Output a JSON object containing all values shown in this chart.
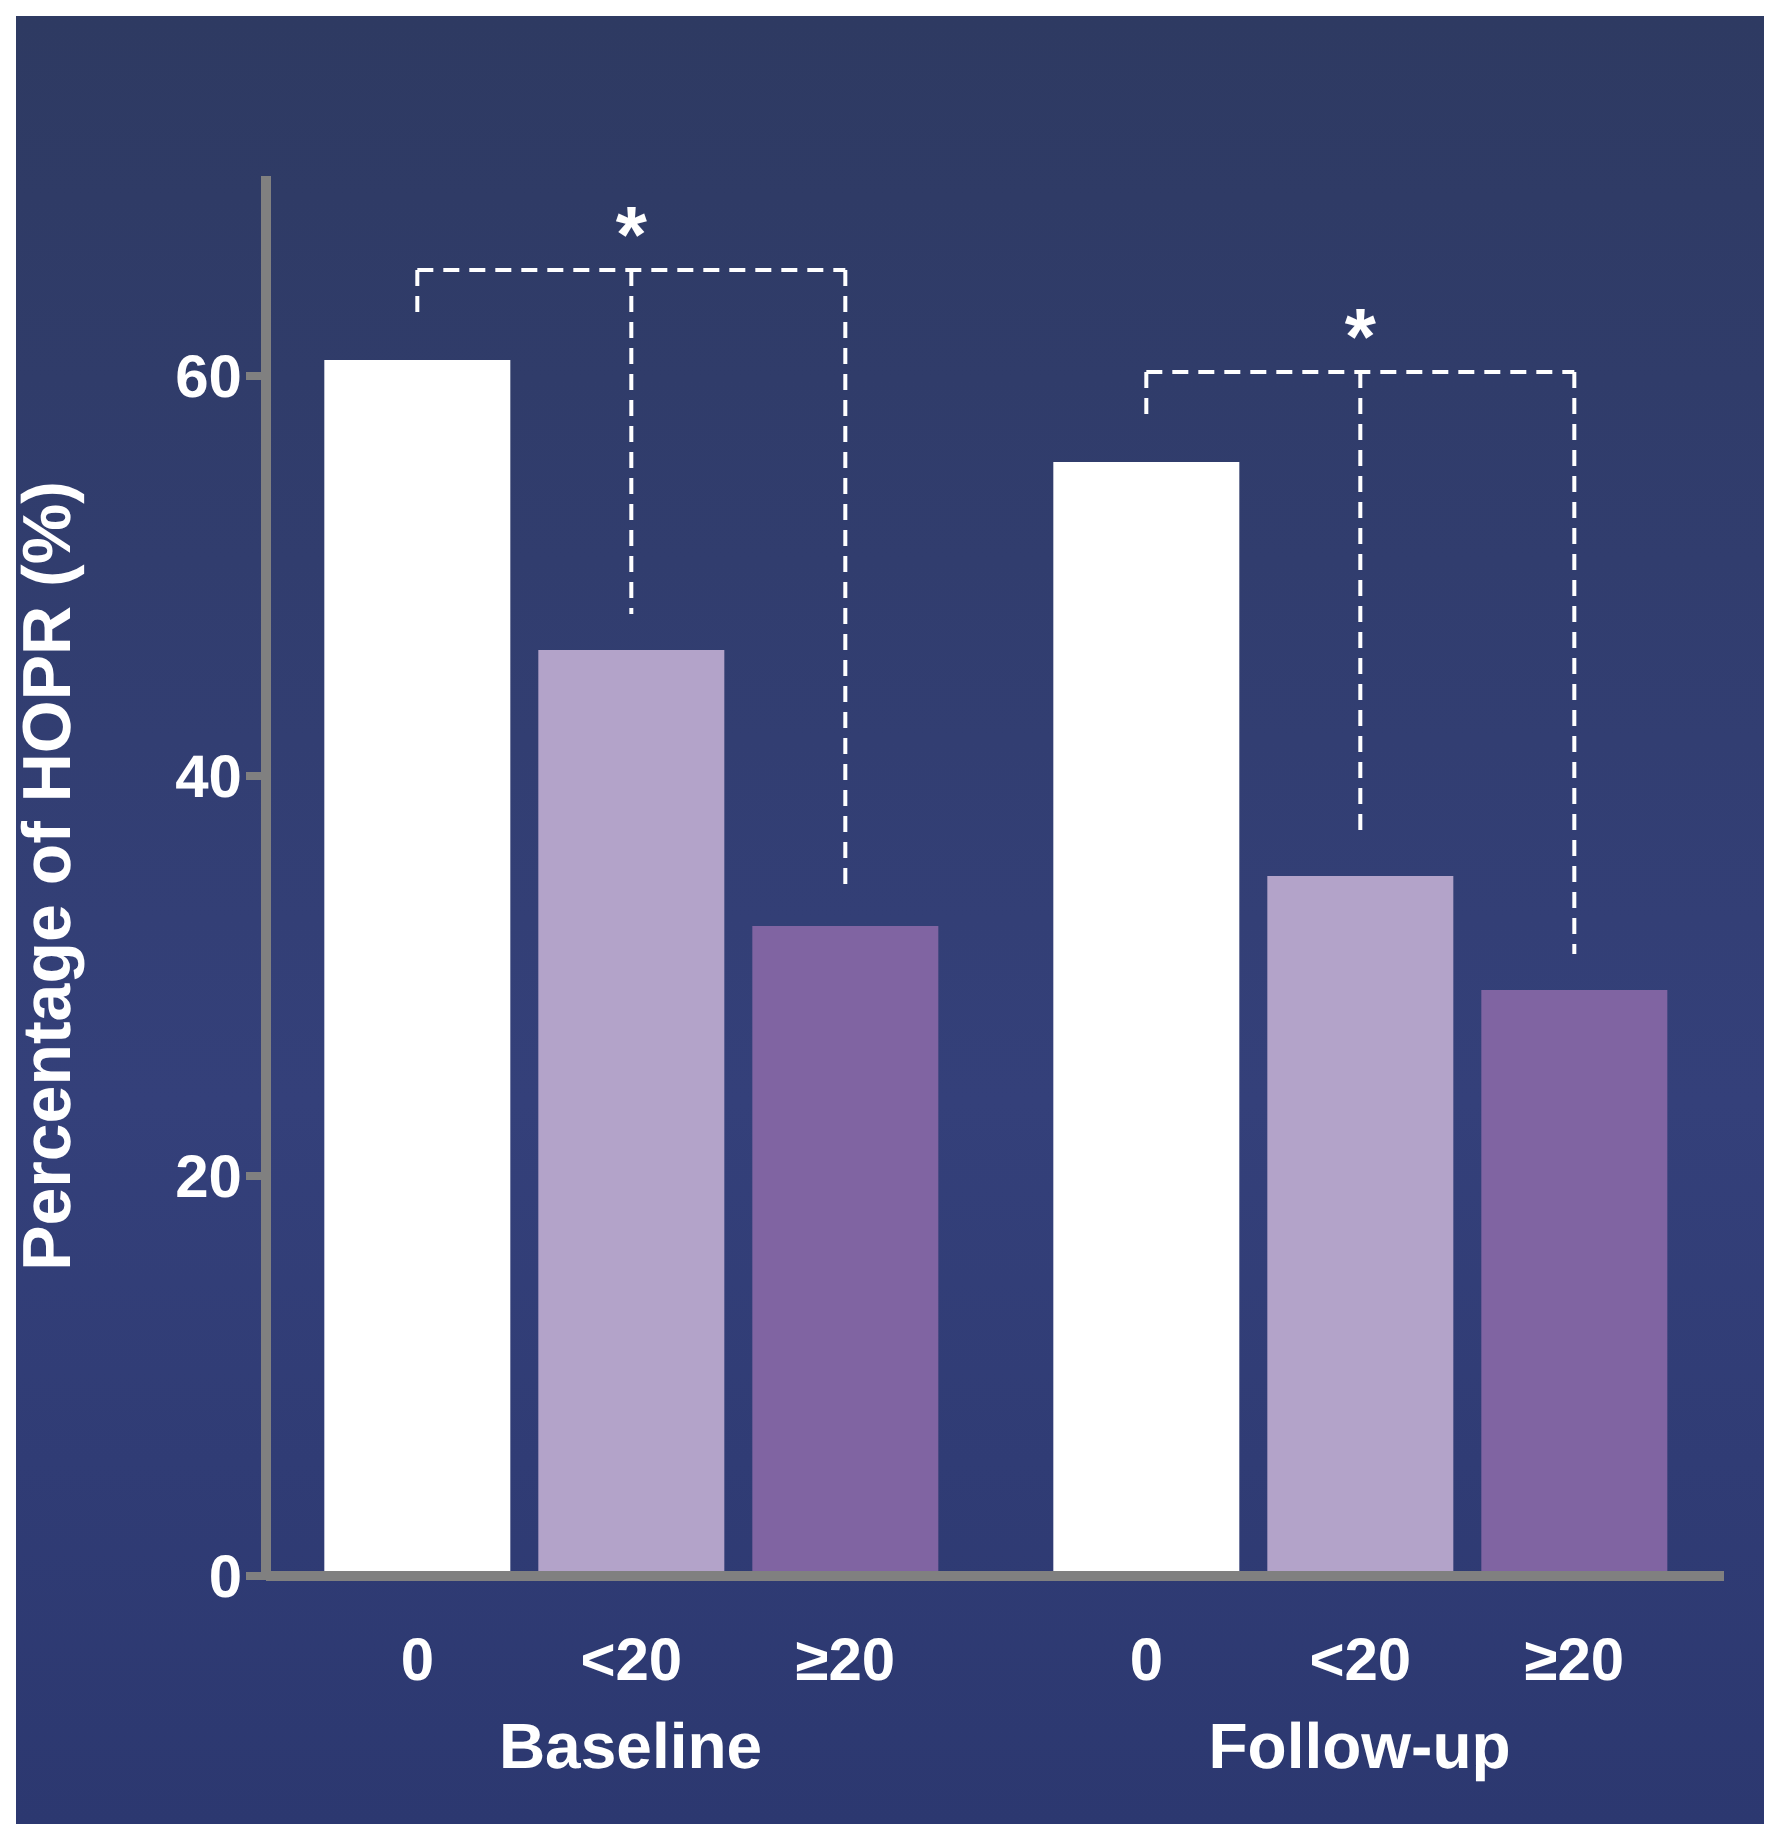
{
  "chart_data": {
    "type": "bar",
    "ylabel": "Percentage of HOPR (%)",
    "categories": [
      "Baseline",
      "Follow-up"
    ],
    "series": [
      {
        "name": "0",
        "color": "#ffffff",
        "values": [
          60.8,
          55.7
        ]
      },
      {
        "name": "<20",
        "color": "#b3a3c9",
        "values": [
          46.3,
          35.0
        ]
      },
      {
        "name": "≥20",
        "color": "#8064a2",
        "values": [
          32.5,
          29.3
        ]
      }
    ],
    "ylim": [
      0,
      70
    ],
    "yticks": [
      0,
      20,
      40,
      60
    ],
    "grid": false,
    "legend": false,
    "annotations": [
      "*",
      "*"
    ]
  }
}
